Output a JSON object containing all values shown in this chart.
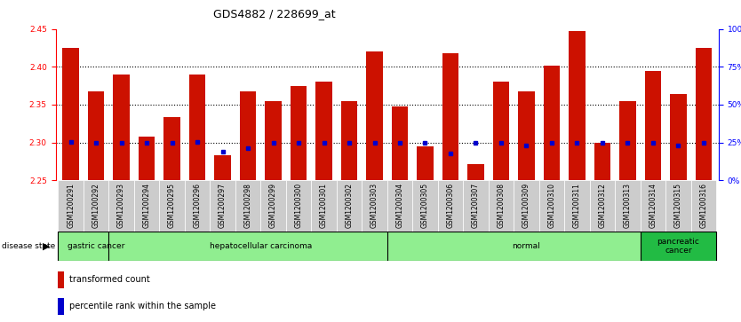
{
  "title": "GDS4882 / 228699_at",
  "samples": [
    "GSM1200291",
    "GSM1200292",
    "GSM1200293",
    "GSM1200294",
    "GSM1200295",
    "GSM1200296",
    "GSM1200297",
    "GSM1200298",
    "GSM1200299",
    "GSM1200300",
    "GSM1200301",
    "GSM1200302",
    "GSM1200303",
    "GSM1200304",
    "GSM1200305",
    "GSM1200306",
    "GSM1200307",
    "GSM1200308",
    "GSM1200309",
    "GSM1200310",
    "GSM1200311",
    "GSM1200312",
    "GSM1200313",
    "GSM1200314",
    "GSM1200315",
    "GSM1200316"
  ],
  "red_values": [
    2.425,
    2.367,
    2.39,
    2.308,
    2.334,
    2.39,
    2.283,
    2.367,
    2.355,
    2.375,
    2.38,
    2.355,
    2.42,
    2.348,
    2.295,
    2.418,
    2.272,
    2.38,
    2.367,
    2.402,
    2.447,
    2.3,
    2.355,
    2.395,
    2.364,
    2.425
  ],
  "blue_values": [
    2.301,
    2.299,
    2.299,
    2.299,
    2.299,
    2.301,
    2.288,
    2.293,
    2.299,
    2.299,
    2.299,
    2.299,
    2.299,
    2.299,
    2.299,
    2.286,
    2.299,
    2.299,
    2.296,
    2.299,
    2.299,
    2.299,
    2.299,
    2.299,
    2.296,
    2.299
  ],
  "groups": [
    {
      "label": "gastric cancer",
      "start": 0,
      "end": 2,
      "color": "#90EE90"
    },
    {
      "label": "hepatocellular carcinoma",
      "start": 2,
      "end": 13,
      "color": "#90EE90"
    },
    {
      "label": "normal",
      "start": 13,
      "end": 23,
      "color": "#90EE90"
    },
    {
      "label": "pancreatic\ncancer",
      "start": 23,
      "end": 25,
      "color": "#22BB44"
    }
  ],
  "ylim_left": [
    2.25,
    2.45
  ],
  "yticks_left": [
    2.25,
    2.3,
    2.35,
    2.4,
    2.45
  ],
  "yticks_right": [
    0,
    25,
    50,
    75,
    100
  ],
  "bar_color": "#CC1100",
  "dot_color": "#0000CC",
  "bar_width": 0.65,
  "tick_fontsize": 6.5,
  "title_fontsize": 9
}
